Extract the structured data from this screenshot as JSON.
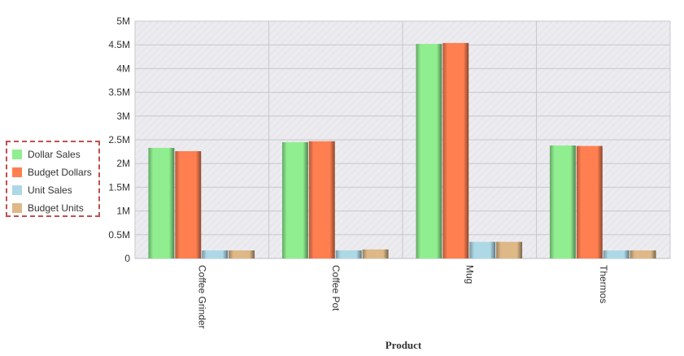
{
  "chart_data": {
    "type": "bar",
    "title": "",
    "xlabel": "Product",
    "ylabel": "",
    "categories": [
      "Coffee Grinder",
      "Coffee Pot",
      "Mug",
      "Thermos"
    ],
    "series": [
      {
        "name": "Dollar Sales",
        "color": "#90ee90",
        "values": [
          2330000,
          2450000,
          4520000,
          2380000
        ]
      },
      {
        "name": "Budget Dollars",
        "color": "#ff7f50",
        "values": [
          2260000,
          2470000,
          4540000,
          2370000
        ]
      },
      {
        "name": "Unit Sales",
        "color": "#add8e6",
        "values": [
          170000,
          170000,
          350000,
          170000
        ]
      },
      {
        "name": "Budget Units",
        "color": "#deb887",
        "values": [
          170000,
          190000,
          350000,
          170000
        ]
      }
    ],
    "ylim": [
      0,
      5000000
    ],
    "yticks": [
      {
        "value": 0,
        "label": "0"
      },
      {
        "value": 500000,
        "label": "0.5M"
      },
      {
        "value": 1000000,
        "label": "1M"
      },
      {
        "value": 1500000,
        "label": "1.5M"
      },
      {
        "value": 2000000,
        "label": "2M"
      },
      {
        "value": 2500000,
        "label": "2.5M"
      },
      {
        "value": 3000000,
        "label": "3M"
      },
      {
        "value": 3500000,
        "label": "3.5M"
      },
      {
        "value": 4000000,
        "label": "4M"
      },
      {
        "value": 4500000,
        "label": "4.5M"
      },
      {
        "value": 5000000,
        "label": "5M"
      }
    ],
    "grid": true,
    "legend_position": "left",
    "colors": {
      "plot_background": "#ececf0",
      "grid": "#c8c8cc",
      "legend_border": "#c0504d"
    }
  }
}
